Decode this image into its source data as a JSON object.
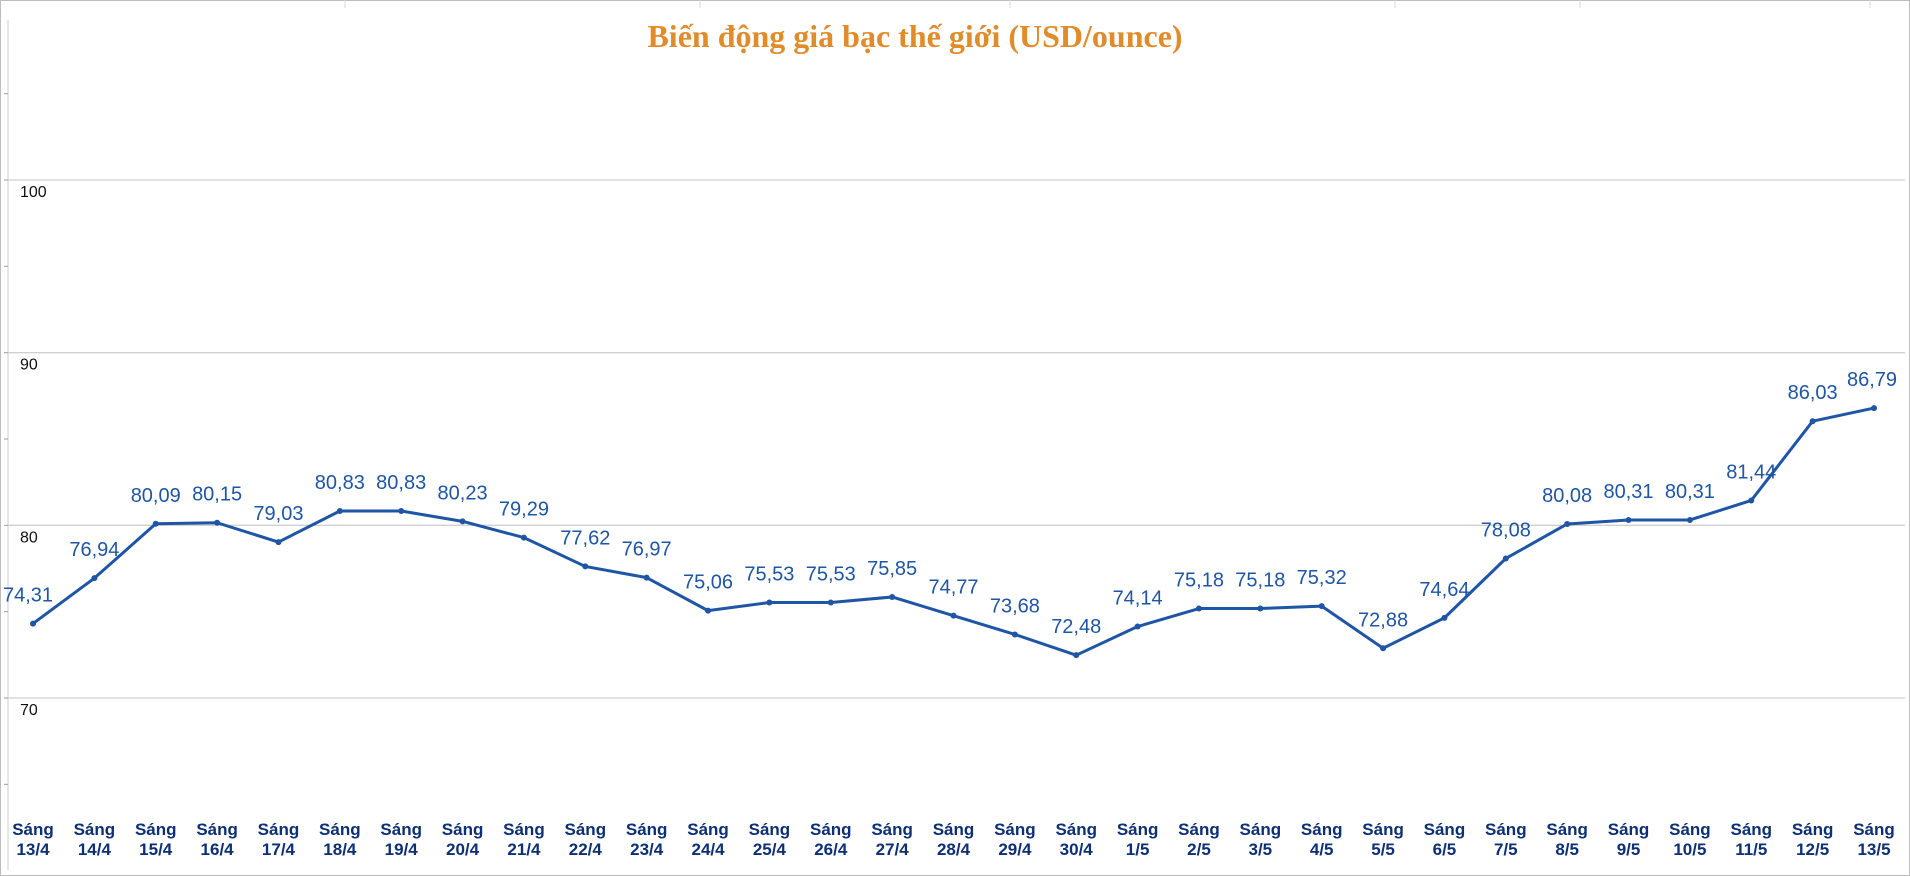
{
  "chart_data": {
    "type": "line",
    "title": "Biến động giá bạc thế giới (USD/ounce)",
    "xlabel": "",
    "ylabel": "",
    "ylim": [
      60,
      110
    ],
    "yticks": [
      70,
      80,
      90,
      100
    ],
    "grid": true,
    "legend": "none",
    "line_color": "#1f55a5",
    "title_color": "#e08c2a",
    "x_label_color": "#0d2f73",
    "categories": [
      [
        "Sáng",
        "13/4"
      ],
      [
        "Sáng",
        "14/4"
      ],
      [
        "Sáng",
        "15/4"
      ],
      [
        "Sáng",
        "16/4"
      ],
      [
        "Sáng",
        "17/4"
      ],
      [
        "Sáng",
        "18/4"
      ],
      [
        "Sáng",
        "19/4"
      ],
      [
        "Sáng",
        "20/4"
      ],
      [
        "Sáng",
        "21/4"
      ],
      [
        "Sáng",
        "22/4"
      ],
      [
        "Sáng",
        "23/4"
      ],
      [
        "Sáng",
        "24/4"
      ],
      [
        "Sáng",
        "25/4"
      ],
      [
        "Sáng",
        "26/4"
      ],
      [
        "Sáng",
        "27/4"
      ],
      [
        "Sáng",
        "28/4"
      ],
      [
        "Sáng",
        "29/4"
      ],
      [
        "Sáng",
        "30/4"
      ],
      [
        "Sáng",
        "1/5"
      ],
      [
        "Sáng",
        "2/5"
      ],
      [
        "Sáng",
        "3/5"
      ],
      [
        "Sáng",
        "4/5"
      ],
      [
        "Sáng",
        "5/5"
      ],
      [
        "Sáng",
        "6/5"
      ],
      [
        "Sáng",
        "7/5"
      ],
      [
        "Sáng",
        "8/5"
      ],
      [
        "Sáng",
        "9/5"
      ],
      [
        "Sáng",
        "10/5"
      ],
      [
        "Sáng",
        "11/5"
      ],
      [
        "Sáng",
        "12/5"
      ],
      [
        "Sáng",
        "13/5"
      ]
    ],
    "series": [
      {
        "values": [
          74.31,
          76.94,
          80.09,
          80.15,
          79.03,
          80.83,
          80.83,
          80.23,
          79.29,
          77.62,
          76.97,
          75.06,
          75.53,
          75.53,
          75.85,
          74.77,
          73.68,
          72.48,
          74.14,
          75.18,
          75.18,
          75.32,
          72.88,
          74.64,
          78.08,
          80.08,
          80.31,
          80.31,
          81.44,
          86.03,
          86.79
        ],
        "labels": [
          "74,31",
          "76,94",
          "80,09",
          "80,15",
          "79,03",
          "80,83",
          "80,83",
          "80,23",
          "79,29",
          "77,62",
          "76,97",
          "75,06",
          "75,53",
          "75,53",
          "75,85",
          "74,77",
          "73,68",
          "72,48",
          "74,14",
          "75,18",
          "75,18",
          "75,32",
          "72,88",
          "74,64",
          "78,08",
          "80,08",
          "80,31",
          "80,31",
          "81,44",
          "86,03",
          "86,79"
        ]
      }
    ]
  }
}
